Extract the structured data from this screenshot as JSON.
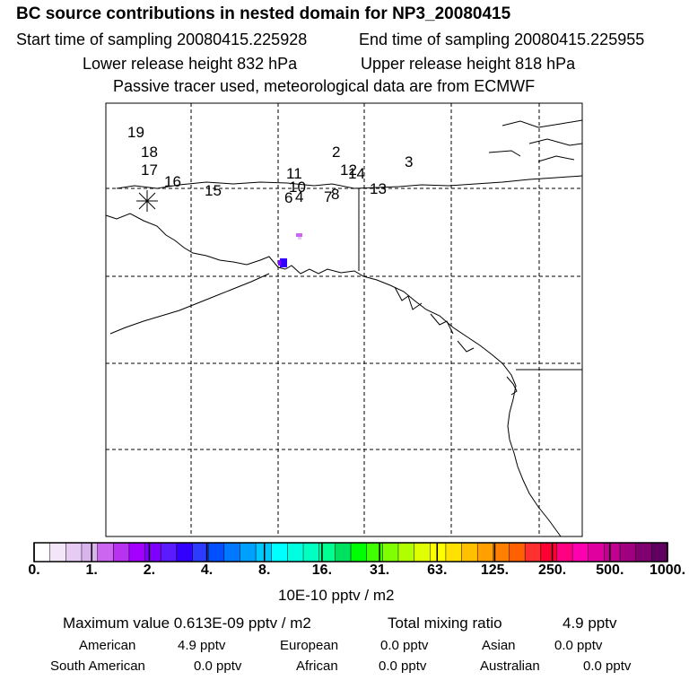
{
  "header": {
    "title": "BC  source contributions in nested domain for NP3_20080415",
    "start_time": "Start time of sampling 20080415.225928",
    "end_time": "End time of sampling 20080415.225955",
    "lower_height": "Lower release height  832 hPa",
    "upper_height": "Upper release height  818 hPa",
    "tracer_note": "Passive tracer used, meteorological data are from ECMWF"
  },
  "map": {
    "point_labels": [
      "19",
      "18",
      "17",
      "16",
      "15",
      "11",
      "10",
      "6",
      "4",
      "7",
      "8",
      "2",
      "12",
      "14",
      "3",
      "13"
    ],
    "release_marker": "star-marker"
  },
  "colorbar": {
    "ticks": [
      "0.",
      "1.",
      "2.",
      "4.",
      "8.",
      "16.",
      "31.",
      "63.",
      "125.",
      "250.",
      "500.",
      "1000."
    ],
    "colors": [
      "#ffffff",
      "#f3e6f8",
      "#e6ccf2",
      "#d9b3ec",
      "#cc66f0",
      "#b833f0",
      "#a300ff",
      "#7f00ff",
      "#5b1aff",
      "#3300ff",
      "#2b3cff",
      "#0050ff",
      "#0078ff",
      "#00a0ff",
      "#00c8ff",
      "#00ffff",
      "#00ffe0",
      "#00ffc0",
      "#00ff90",
      "#00e060",
      "#00ff00",
      "#40ff00",
      "#80ff00",
      "#b0ff00",
      "#e0ff00",
      "#ffff00",
      "#ffe000",
      "#ffc000",
      "#ffa000",
      "#ff8000",
      "#ff6000",
      "#ff3030",
      "#ff0030",
      "#ff0080",
      "#ff00b0",
      "#e000a0",
      "#c00090",
      "#a00080",
      "#800070",
      "#600060"
    ],
    "unit_label": "10E-10 pptv / m2"
  },
  "stats": {
    "max_value": "Maximum value  0.613E-09 pptv / m2",
    "total_label": "Total mixing ratio",
    "total_value": "4.9 pptv",
    "regions": [
      {
        "name": "American",
        "value": "4.9 pptv"
      },
      {
        "name": "European",
        "value": "0.0 pptv"
      },
      {
        "name": "Asian",
        "value": "0.0 pptv"
      },
      {
        "name": "South American",
        "value": "0.0 pptv"
      },
      {
        "name": "African",
        "value": "0.0 pptv"
      },
      {
        "name": "Australian",
        "value": "0.0 pptv"
      }
    ]
  }
}
